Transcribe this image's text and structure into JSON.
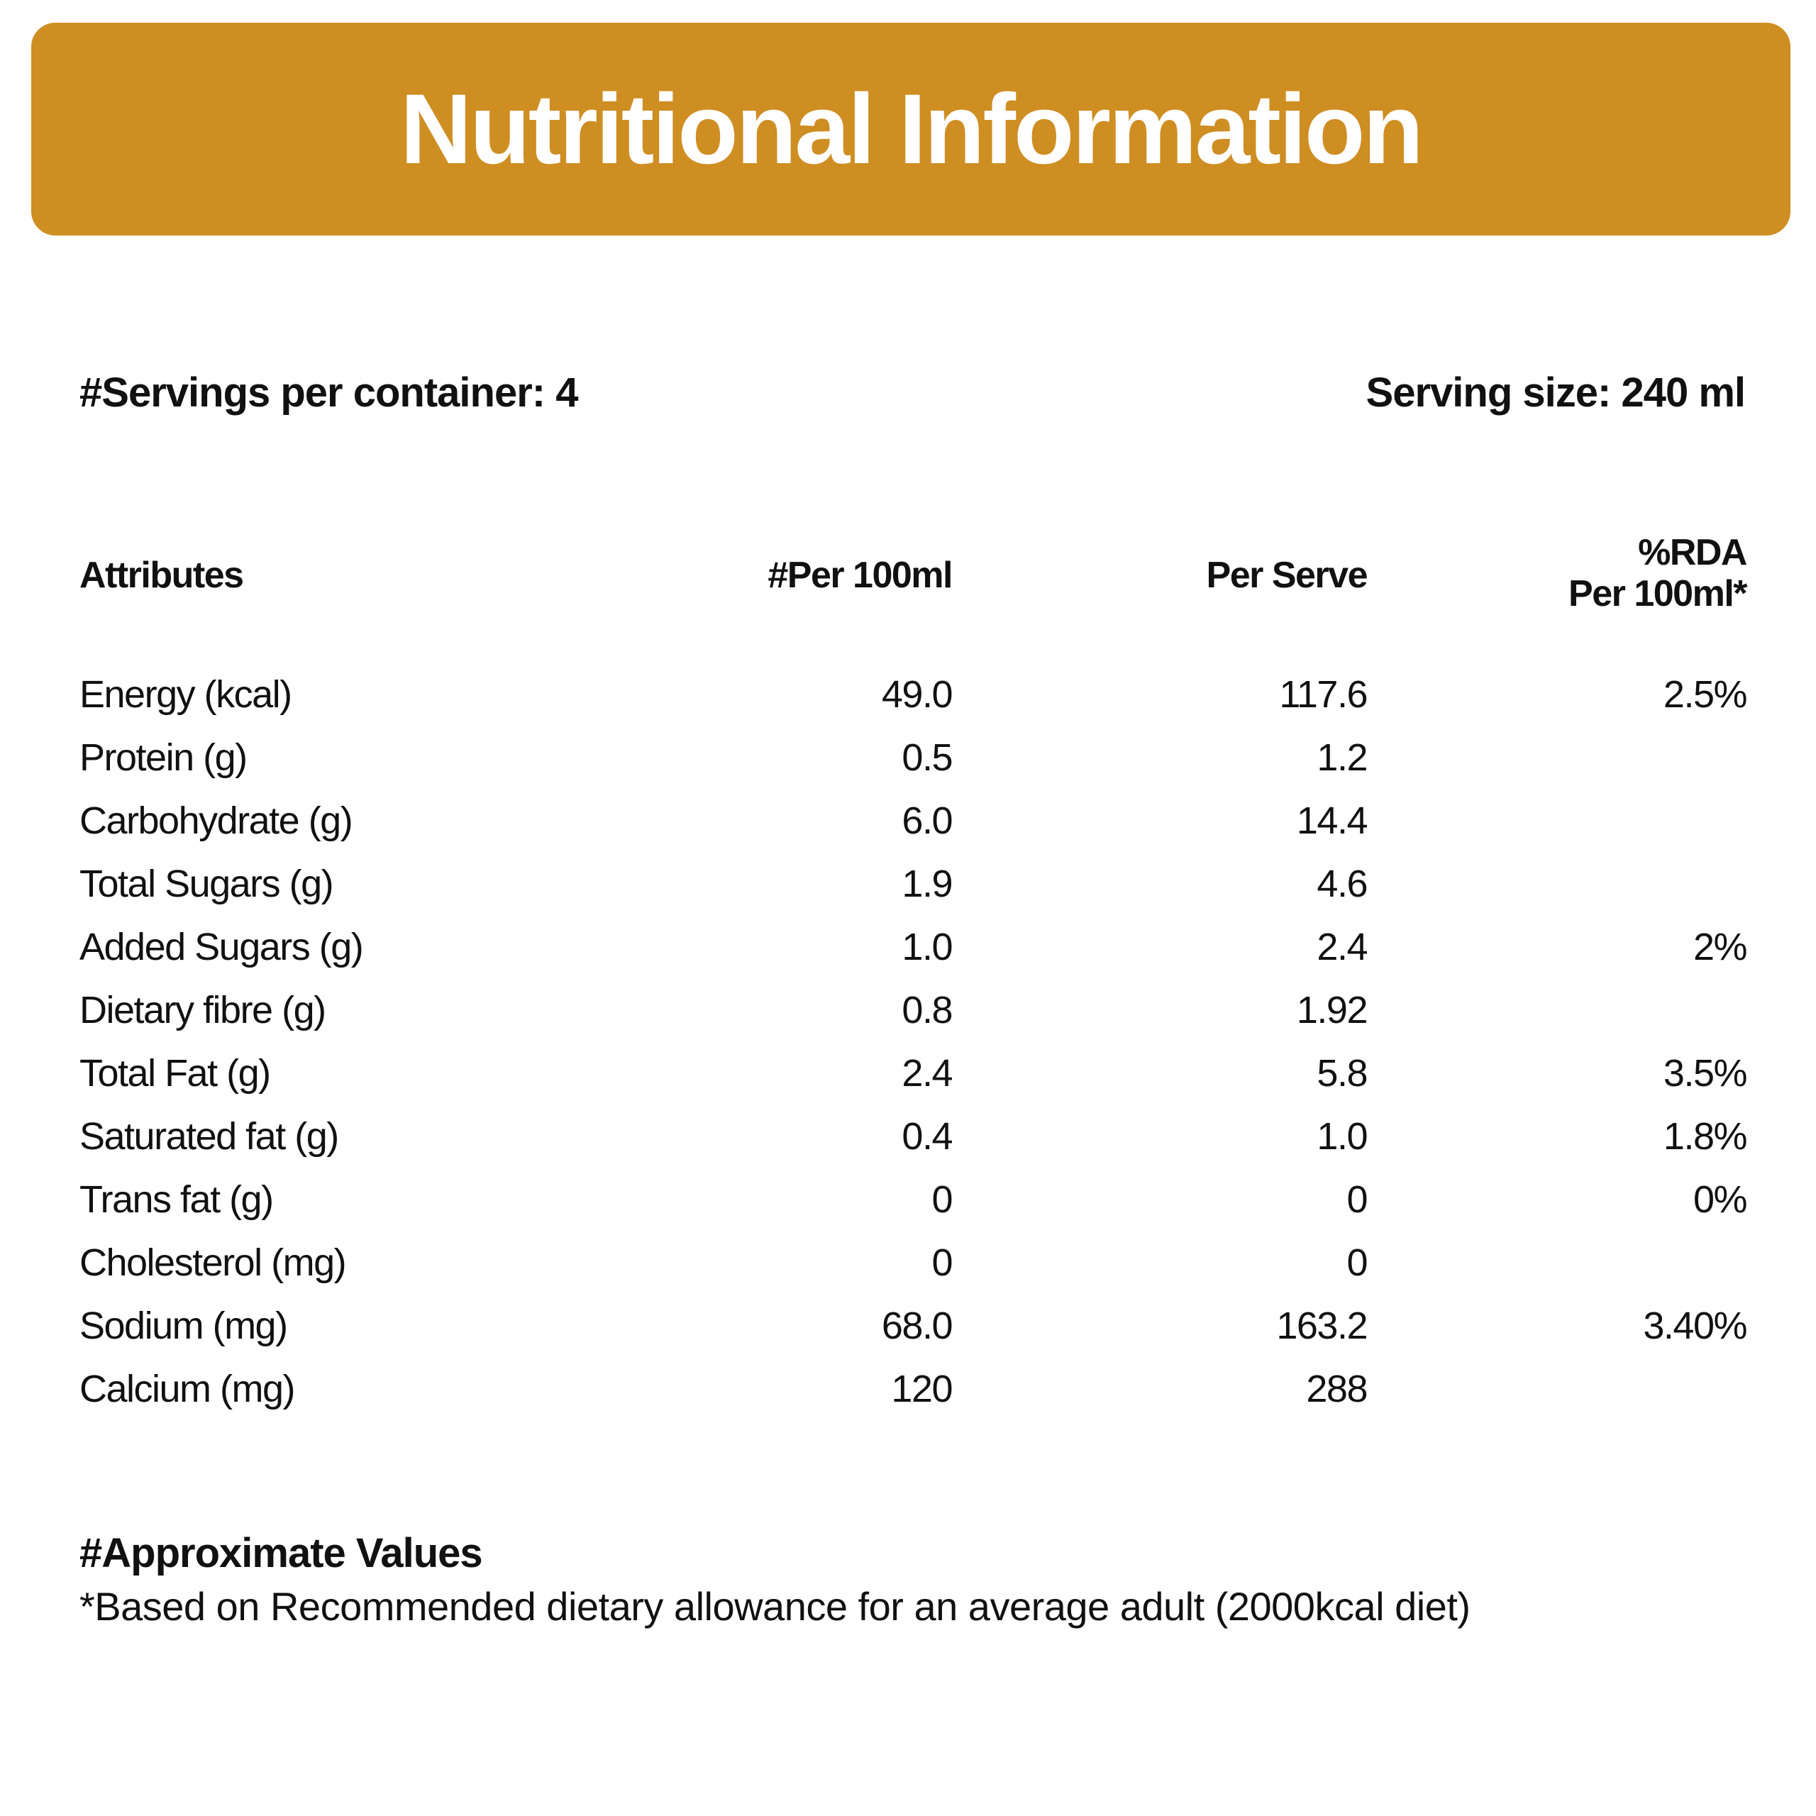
{
  "header": {
    "title": "Nutritional Information",
    "color": "#CE8E22"
  },
  "serving": {
    "per_container": "#Servings per container: 4",
    "size": "Serving size: 240 ml"
  },
  "table": {
    "headers": {
      "attributes": "Attributes",
      "per100": "#Per 100ml",
      "per_serve": "Per Serve",
      "rda_line1": "%RDA",
      "rda_line2": "Per 100ml*"
    },
    "rows": [
      {
        "attr": "Energy (kcal)",
        "per100": "49.0",
        "serve": "117.6",
        "rda": "2.5%"
      },
      {
        "attr": "Protein (g)",
        "per100": "0.5",
        "serve": "1.2",
        "rda": ""
      },
      {
        "attr": "Carbohydrate (g)",
        "per100": "6.0",
        "serve": "14.4",
        "rda": ""
      },
      {
        "attr": "Total Sugars (g)",
        "per100": "1.9",
        "serve": "4.6",
        "rda": ""
      },
      {
        "attr": "Added Sugars (g)",
        "per100": "1.0",
        "serve": "2.4",
        "rda": "2%"
      },
      {
        "attr": "Dietary fibre (g)",
        "per100": "0.8",
        "serve": "1.92",
        "rda": ""
      },
      {
        "attr": "Total Fat (g)",
        "per100": "2.4",
        "serve": "5.8",
        "rda": "3.5%"
      },
      {
        "attr": "Saturated fat (g)",
        "per100": "0.4",
        "serve": "1.0",
        "rda": "1.8%"
      },
      {
        "attr": "Trans fat (g)",
        "per100": "0",
        "serve": "0",
        "rda": "0%"
      },
      {
        "attr": "Cholesterol (mg)",
        "per100": "0",
        "serve": "0",
        "rda": ""
      },
      {
        "attr": "Sodium (mg)",
        "per100": "68.0",
        "serve": "163.2",
        "rda": "3.40%"
      },
      {
        "attr": "Calcium (mg)",
        "per100": "120",
        "serve": "288",
        "rda": ""
      }
    ]
  },
  "footnote": {
    "title": "#Approximate Values",
    "text": "*Based on Recommended dietary allowance for an average adult (2000kcal diet)"
  }
}
